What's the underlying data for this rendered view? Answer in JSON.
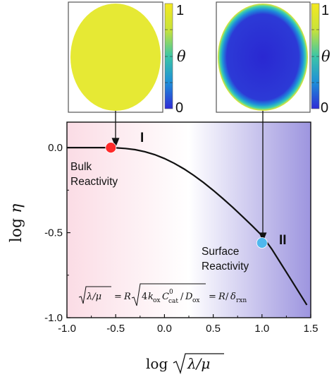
{
  "chart_data": {
    "type": "line",
    "xlabel": "log √(λ/μ)",
    "ylabel": "log η",
    "xlim": [
      -1.0,
      1.5
    ],
    "ylim": [
      -1.0,
      0.15
    ],
    "xticks": [
      "-1.0",
      "-0.5",
      "0.0",
      "0.5",
      "1.0",
      "1.5"
    ],
    "yticks": [
      "0.0",
      "-0.5",
      "-1.0"
    ],
    "series": [
      {
        "x": [
          -1.0,
          -0.8,
          -0.6,
          -0.5,
          -0.4,
          -0.3,
          -0.2,
          -0.1,
          0.0,
          0.1,
          0.2,
          0.3,
          0.4,
          0.5,
          0.6,
          0.7,
          0.8,
          0.9,
          1.0,
          1.1,
          1.2,
          1.3,
          1.4,
          1.46
        ],
        "y": [
          0.0,
          0.0,
          0.0,
          -0.001,
          -0.005,
          -0.012,
          -0.024,
          -0.041,
          -0.064,
          -0.092,
          -0.125,
          -0.163,
          -0.205,
          -0.251,
          -0.3,
          -0.351,
          -0.405,
          -0.46,
          -0.517,
          -0.596,
          -0.687,
          -0.778,
          -0.87,
          -0.925
        ]
      }
    ],
    "points": [
      {
        "x": -0.55,
        "y": 0.0,
        "color": "#ff2a2a"
      },
      {
        "x": 1.0,
        "y": -0.56,
        "color": "#4fb8ee"
      }
    ],
    "annotations": {
      "bulk_line1": "Bulk",
      "bulk_line2": "Reactivity",
      "surface_line1": "Surface",
      "surface_line2": "Reactivity",
      "region_1": "I",
      "region_2": "II"
    },
    "equation": "√(λ/μ) = R √(4k_ox C⁰_cat / D_ox) = R/δ_rxn",
    "colorbar": {
      "label": "θ",
      "max_label": "1",
      "min_label": "0",
      "colors": [
        "#2f2bd6",
        "#1e8fd8",
        "#3cc6a6",
        "#c8e23a",
        "#f4e920"
      ]
    },
    "background": {
      "left_color": "#fbdce5",
      "right_color": "#9d95df"
    }
  }
}
